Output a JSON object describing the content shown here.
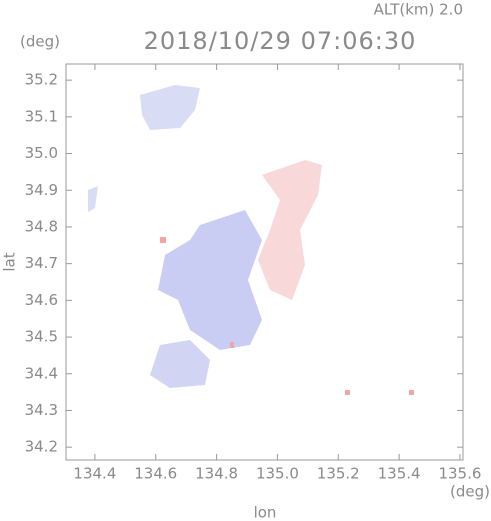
{
  "chart_data": {
    "type": "map",
    "title": "2018/10/29 07:06:30",
    "subtitle": "ALT(km) 2.0",
    "x_label": "lon",
    "y_label": "lat",
    "x_unit": "(deg)",
    "y_unit": "(deg)",
    "xlim": [
      134.305,
      135.61
    ],
    "ylim": [
      34.165,
      35.244
    ],
    "xticks": [
      134.4,
      134.6,
      134.8,
      {
        "value": 135.0,
        "label": "135.0"
      },
      135.2,
      135.4,
      135.6
    ],
    "yticks": [
      34.2,
      34.3,
      34.4,
      34.5,
      34.6,
      34.7,
      34.8,
      34.9,
      {
        "value": 35.0,
        "label": "35.0"
      },
      35.1,
      35.2
    ]
  }
}
